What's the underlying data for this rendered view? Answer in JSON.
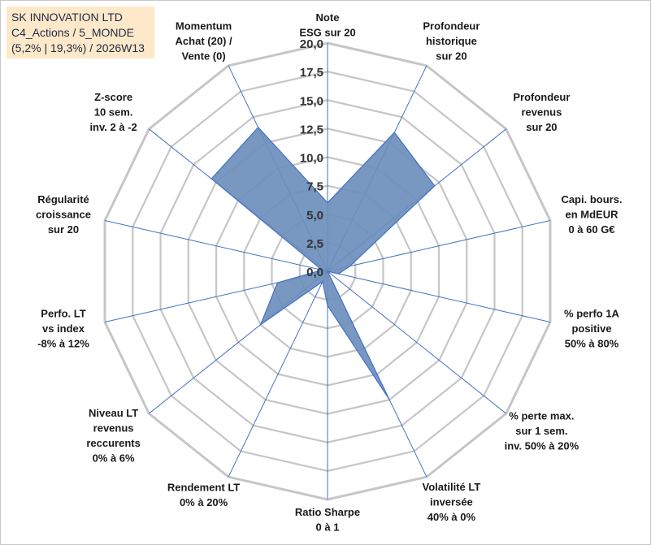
{
  "title_lines": [
    "SK INNOVATION LTD",
    "C4_Actions / 5_MONDE",
    "(5,2% | 19,3%) / 2026W13"
  ],
  "chart_data": {
    "type": "radar",
    "title": "SK INNOVATION LTD",
    "range": [
      0,
      20
    ],
    "tick_values": [
      0,
      2.5,
      5,
      7.5,
      10,
      12.5,
      15,
      17.5,
      20
    ],
    "tick_labels": [
      "0,0",
      "2,5",
      "5,0",
      "7,5",
      "10,0",
      "12,5",
      "15,0",
      "17,5",
      "20,0"
    ],
    "grid": true,
    "axes": [
      {
        "label": [
          "Note",
          "ESG sur 20"
        ]
      },
      {
        "label": [
          "Profondeur",
          "historique",
          "sur 20"
        ]
      },
      {
        "label": [
          "Profondeur",
          "revenus",
          "sur 20"
        ]
      },
      {
        "label": [
          "Capi. bours.",
          "en MdEUR",
          "0 à 60 G€"
        ]
      },
      {
        "label": [
          "% perfo 1A",
          "positive",
          "50% à 80%"
        ]
      },
      {
        "label": [
          "% perte max.",
          "sur 1 sem.",
          "inv. 50% à 20%"
        ]
      },
      {
        "label": [
          "Volatilité LT",
          "inversée",
          "40% à 0%"
        ]
      },
      {
        "label": [
          "Ratio Sharpe",
          "0 à 1"
        ]
      },
      {
        "label": [
          "Rendement LT",
          "0% à 20%"
        ]
      },
      {
        "label": [
          "Niveau LT",
          "revenus",
          "reccurents",
          "0% à 6%"
        ]
      },
      {
        "label": [
          "Perfo. LT",
          "vs index",
          "-8% à 12%"
        ]
      },
      {
        "label": [
          "Régularité",
          "croissance",
          "sur 20"
        ]
      },
      {
        "label": [
          "Z-score",
          "10 sem.",
          "inv. 2 à -2"
        ]
      },
      {
        "label": [
          "Momentum",
          "Achat (20) /",
          "Vente (0)"
        ]
      }
    ],
    "series": [
      {
        "values": [
          6.0,
          13.5,
          12.0,
          2.0,
          1.0,
          0.0,
          12.5,
          3.0,
          1.0,
          7.5,
          4.5,
          0.5,
          13.0,
          14.0
        ]
      }
    ],
    "colors": {
      "fill": "#6d8ebc",
      "stroke": "#4472c4",
      "grid": "#c6c6c6",
      "spoke": "#4472c4"
    }
  }
}
